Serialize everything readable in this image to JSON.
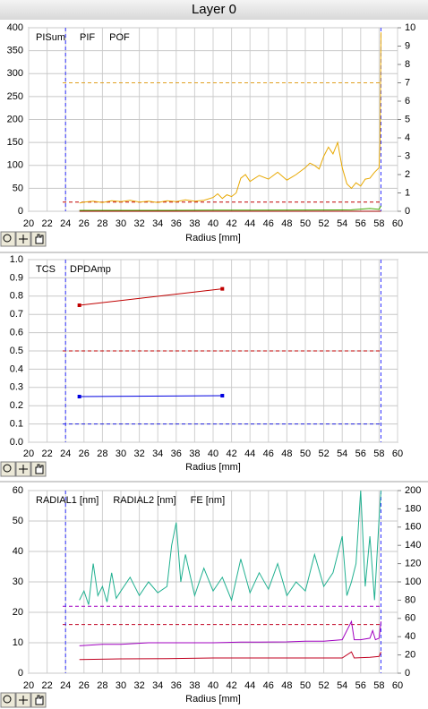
{
  "window": {
    "title": "Layer 0"
  },
  "chart_data": [
    {
      "type": "line",
      "xlabel": "Radius [mm]",
      "xlim": [
        20,
        60
      ],
      "xticks": [
        20,
        22,
        24,
        26,
        28,
        30,
        32,
        34,
        36,
        38,
        40,
        42,
        44,
        46,
        48,
        50,
        52,
        54,
        56,
        58,
        60
      ],
      "ylim": [
        0,
        400
      ],
      "yticks": [
        0,
        50,
        100,
        150,
        200,
        250,
        300,
        350,
        400
      ],
      "y2lim": [
        0,
        10
      ],
      "y2ticks": [
        0,
        1,
        2,
        3,
        4,
        5,
        6,
        7,
        8,
        9,
        10
      ],
      "grid": true,
      "vlines": [
        {
          "value": 24,
          "color": "#3030ff"
        },
        {
          "value": 58.2,
          "color": "#3030ff"
        }
      ],
      "hlines": [
        {
          "value": 280,
          "color": "#e0a020"
        },
        {
          "value": 20,
          "color": "#c00000"
        }
      ],
      "series": [
        {
          "name": "PISum",
          "color": "#e8a800",
          "x": [
            25.5,
            26,
            27,
            28,
            29,
            30,
            31,
            32,
            33,
            34,
            35,
            36,
            37,
            38,
            39,
            40,
            40.5,
            41,
            41.5,
            42,
            42.5,
            43,
            43.5,
            44,
            45,
            46,
            47,
            48,
            49,
            50,
            50.5,
            51,
            51.5,
            52,
            52.5,
            53,
            53.5,
            54,
            54.5,
            55,
            55.5,
            56,
            56.5,
            57,
            57.5,
            58,
            58.1,
            58.2
          ],
          "values": [
            18,
            20,
            22,
            19,
            23,
            21,
            24,
            20,
            22,
            19,
            23,
            21,
            25,
            22,
            24,
            30,
            38,
            28,
            36,
            32,
            40,
            72,
            80,
            65,
            78,
            70,
            85,
            68,
            80,
            95,
            105,
            100,
            92,
            120,
            140,
            125,
            150,
            95,
            60,
            50,
            62,
            55,
            70,
            72,
            85,
            95,
            150,
            390
          ]
        },
        {
          "name": "PIF",
          "color": "#40a800",
          "axis": "y2",
          "x": [
            25.5,
            30,
            35,
            40,
            45,
            50,
            55,
            57,
            58,
            58.2
          ],
          "values": [
            0.05,
            0.05,
            0.05,
            0.06,
            0.06,
            0.07,
            0.08,
            0.15,
            0.1,
            0.3
          ]
        },
        {
          "name": "POF",
          "color": "#a00000",
          "axis": "y2",
          "x": [
            25.5,
            58.2
          ],
          "values": [
            0,
            0
          ]
        }
      ]
    },
    {
      "type": "line",
      "xlabel": "Radius [mm]",
      "xlim": [
        20,
        60
      ],
      "xticks": [
        20,
        22,
        24,
        26,
        28,
        30,
        32,
        34,
        36,
        38,
        40,
        42,
        44,
        46,
        48,
        50,
        52,
        54,
        56,
        58,
        60
      ],
      "ylim": [
        0,
        1
      ],
      "yticks": [
        {
          "value": 0,
          "label": "0.0"
        },
        0.1,
        0.2,
        0.3,
        0.4,
        0.5,
        0.6,
        0.7,
        0.8,
        0.9,
        {
          "value": 1,
          "label": "1.0"
        }
      ],
      "grid": true,
      "markers": true,
      "vlines": [
        {
          "value": 24,
          "color": "#3030ff"
        },
        {
          "value": 58.2,
          "color": "#3030ff"
        }
      ],
      "hlines": [
        {
          "value": 0.5,
          "color": "#c00000"
        },
        {
          "value": 0.1,
          "color": "#2020e0"
        }
      ],
      "series": [
        {
          "name": "TCS",
          "color": "#0000e0",
          "x": [
            25.5,
            41
          ],
          "values": [
            0.25,
            0.255
          ]
        },
        {
          "name": "DPDAmp",
          "color": "#c00000",
          "x": [
            25.5,
            41
          ],
          "values": [
            0.75,
            0.84
          ]
        }
      ]
    },
    {
      "type": "line",
      "xlabel": "Radius [mm]",
      "xlim": [
        20,
        60
      ],
      "xticks": [
        20,
        22,
        24,
        26,
        28,
        30,
        32,
        34,
        36,
        38,
        40,
        42,
        44,
        46,
        48,
        50,
        52,
        54,
        56,
        58,
        60
      ],
      "ylim": [
        0,
        60
      ],
      "yticks": [
        0,
        10,
        20,
        30,
        40,
        50,
        60
      ],
      "y2lim": [
        0,
        200
      ],
      "y2ticks": [
        0,
        20,
        40,
        60,
        80,
        100,
        120,
        140,
        160,
        180,
        200
      ],
      "grid": true,
      "vlines": [
        {
          "value": 24,
          "color": "#3030ff"
        },
        {
          "value": 58.2,
          "color": "#3030ff"
        }
      ],
      "hlines": [
        {
          "value": 22,
          "color": "#a000c0"
        },
        {
          "value": 16,
          "color": "#c00020"
        }
      ],
      "series": [
        {
          "name": "RADIAL1 [nm]",
          "color": "#a000c0",
          "x": [
            25.5,
            28,
            30,
            33,
            35,
            38,
            40,
            43,
            45,
            48,
            50,
            52,
            54,
            55,
            55.3,
            56,
            57,
            57.3,
            57.6,
            58,
            58.2
          ],
          "values": [
            9,
            9.5,
            9.5,
            10,
            10,
            10,
            10,
            10.2,
            10.2,
            10.3,
            10.5,
            10.5,
            11,
            17,
            11,
            11,
            11.5,
            14,
            11,
            11.5,
            17
          ]
        },
        {
          "name": "RADIAL2 [nm]",
          "color": "#c00020",
          "x": [
            25.5,
            30,
            35,
            40,
            45,
            50,
            54,
            55,
            55.3,
            57,
            58,
            58.2
          ],
          "values": [
            4.5,
            4.7,
            4.8,
            5,
            5,
            5,
            5,
            7,
            5,
            5.2,
            5.5,
            7
          ]
        },
        {
          "name": "FE [nm]",
          "color": "#20b090",
          "axis": "y2",
          "x": [
            25.5,
            26,
            26.5,
            27,
            27.5,
            28,
            28.5,
            29,
            29.5,
            30,
            31,
            32,
            33,
            34,
            35,
            35.5,
            36,
            36.5,
            37,
            38,
            39,
            40,
            41,
            42,
            43,
            44,
            45,
            46,
            47,
            48,
            49,
            50,
            51,
            52,
            53,
            54,
            54.5,
            55,
            55.5,
            56,
            56.5,
            57,
            57.5,
            58,
            58.2
          ],
          "values": [
            80,
            90,
            75,
            120,
            85,
            95,
            78,
            110,
            82,
            90,
            105,
            85,
            100,
            88,
            95,
            140,
            165,
            100,
            130,
            85,
            115,
            90,
            105,
            80,
            125,
            88,
            110,
            92,
            120,
            85,
            100,
            90,
            130,
            95,
            110,
            150,
            85,
            100,
            120,
            200,
            95,
            150,
            80,
            170,
            200
          ]
        }
      ]
    }
  ]
}
